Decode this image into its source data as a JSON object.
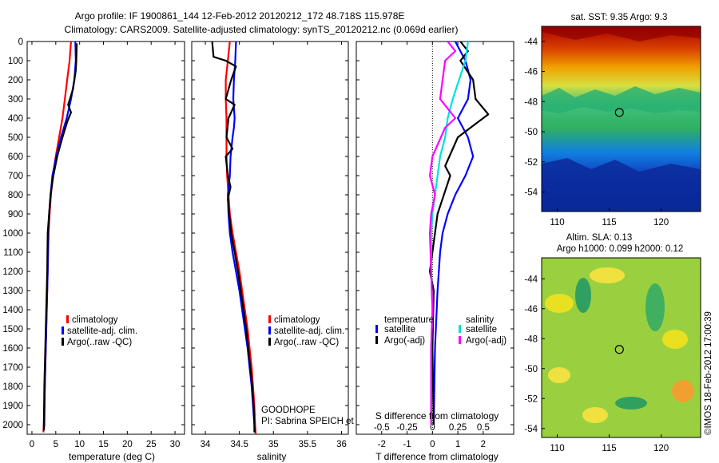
{
  "header": {
    "title": "Argo profile: IF 1900861_144 12-Feb-2012 20120212_172 48.718S 115.978E",
    "subtitle": "Climatology: CARS2009. Satellite-adjusted climatology: synTS_20120212.nc (0.069d earlier)"
  },
  "chart_data": [
    {
      "type": "line",
      "name": "temperature-profile",
      "xlabel": "temperature (deg C)",
      "xlim": [
        -1,
        32
      ],
      "ylim": [
        0,
        2050
      ],
      "xticks": [
        0,
        5,
        10,
        15,
        20,
        25,
        30
      ],
      "yticks": [
        0,
        100,
        200,
        300,
        400,
        500,
        600,
        700,
        800,
        900,
        1000,
        1100,
        1200,
        1300,
        1400,
        1500,
        1600,
        1700,
        1800,
        1900,
        2000
      ],
      "series": [
        {
          "name": "climatology",
          "color": "#ff0000",
          "points": [
            [
              8.2,
              0
            ],
            [
              7.9,
              100
            ],
            [
              7.4,
              200
            ],
            [
              6.9,
              300
            ],
            [
              6.4,
              400
            ],
            [
              5.7,
              500
            ],
            [
              5.0,
              600
            ],
            [
              4.4,
              700
            ],
            [
              4.0,
              800
            ],
            [
              3.7,
              900
            ],
            [
              3.5,
              1000
            ],
            [
              3.3,
              1200
            ],
            [
              3.1,
              1400
            ],
            [
              2.9,
              1600
            ],
            [
              2.7,
              1800
            ],
            [
              2.5,
              2000
            ],
            [
              2.4,
              2040
            ]
          ]
        },
        {
          "name": "satellite-adj. clim.",
          "color": "#0000ff",
          "points": [
            [
              9.1,
              0
            ],
            [
              9.2,
              100
            ],
            [
              8.9,
              200
            ],
            [
              8.2,
              300
            ],
            [
              7.3,
              400
            ],
            [
              6.1,
              500
            ],
            [
              5.1,
              600
            ],
            [
              4.3,
              700
            ],
            [
              3.9,
              800
            ],
            [
              3.6,
              900
            ],
            [
              3.4,
              1000
            ],
            [
              3.3,
              1200
            ],
            [
              3.1,
              1400
            ],
            [
              2.9,
              1600
            ],
            [
              2.7,
              1800
            ],
            [
              2.6,
              2000
            ],
            [
              2.5,
              2030
            ]
          ]
        },
        {
          "name": "Argo(..raw -QC)",
          "color": "#000000",
          "points": [
            [
              9.4,
              10
            ],
            [
              9.3,
              100
            ],
            [
              9.2,
              150
            ],
            [
              8.6,
              250
            ],
            [
              7.6,
              330
            ],
            [
              8.2,
              370
            ],
            [
              7.4,
              420
            ],
            [
              6.4,
              500
            ],
            [
              5.3,
              600
            ],
            [
              4.5,
              700
            ],
            [
              3.9,
              800
            ],
            [
              3.6,
              900
            ],
            [
              3.3,
              1000
            ],
            [
              3.2,
              1200
            ],
            [
              3.0,
              1400
            ],
            [
              2.8,
              1600
            ],
            [
              2.6,
              1800
            ],
            [
              2.5,
              2000
            ],
            [
              2.5,
              2030
            ]
          ]
        }
      ]
    },
    {
      "type": "line",
      "name": "salinity-profile",
      "xlabel": "salinity",
      "xlim": [
        33.8,
        36.1
      ],
      "ylim": [
        0,
        2050
      ],
      "xticks": [
        34,
        34.5,
        35,
        35.5,
        36
      ],
      "series": [
        {
          "name": "climatology",
          "color": "#ff0000",
          "points": [
            [
              34.36,
              0
            ],
            [
              34.33,
              100
            ],
            [
              34.3,
              200
            ],
            [
              34.3,
              300
            ],
            [
              34.31,
              400
            ],
            [
              34.31,
              500
            ],
            [
              34.31,
              600
            ],
            [
              34.32,
              700
            ],
            [
              34.34,
              800
            ],
            [
              34.36,
              900
            ],
            [
              34.4,
              1000
            ],
            [
              34.45,
              1100
            ],
            [
              34.5,
              1200
            ],
            [
              34.54,
              1300
            ],
            [
              34.58,
              1400
            ],
            [
              34.62,
              1500
            ],
            [
              34.65,
              1600
            ],
            [
              34.68,
              1700
            ],
            [
              34.7,
              1800
            ],
            [
              34.72,
              1900
            ],
            [
              34.73,
              2000
            ],
            [
              34.74,
              2050
            ]
          ]
        },
        {
          "name": "satellite-adj. clim.",
          "color": "#0000ff",
          "points": [
            [
              34.45,
              0
            ],
            [
              34.44,
              100
            ],
            [
              34.42,
              200
            ],
            [
              34.41,
              300
            ],
            [
              34.43,
              400
            ],
            [
              34.42,
              450
            ],
            [
              34.4,
              500
            ],
            [
              34.37,
              600
            ],
            [
              34.36,
              700
            ],
            [
              34.33,
              800
            ],
            [
              34.34,
              900
            ],
            [
              34.36,
              1000
            ],
            [
              34.4,
              1100
            ],
            [
              34.45,
              1200
            ],
            [
              34.5,
              1300
            ],
            [
              34.54,
              1400
            ],
            [
              34.58,
              1500
            ],
            [
              34.62,
              1600
            ],
            [
              34.65,
              1700
            ],
            [
              34.68,
              1800
            ],
            [
              34.7,
              1900
            ],
            [
              34.72,
              2000
            ],
            [
              34.73,
              2040
            ]
          ]
        },
        {
          "name": "Argo(..raw -QC)",
          "color": "#000000",
          "points": [
            [
              34.1,
              0
            ],
            [
              34.12,
              80
            ],
            [
              34.3,
              100
            ],
            [
              34.45,
              130
            ],
            [
              34.38,
              200
            ],
            [
              34.3,
              300
            ],
            [
              34.43,
              330
            ],
            [
              34.34,
              400
            ],
            [
              34.31,
              500
            ],
            [
              34.4,
              560
            ],
            [
              34.3,
              600
            ],
            [
              34.33,
              700
            ],
            [
              34.37,
              760
            ],
            [
              34.33,
              820
            ],
            [
              34.35,
              900
            ],
            [
              34.38,
              1000
            ],
            [
              34.43,
              1100
            ],
            [
              34.48,
              1200
            ],
            [
              34.52,
              1300
            ],
            [
              34.56,
              1400
            ],
            [
              34.6,
              1500
            ],
            [
              34.63,
              1600
            ],
            [
              34.66,
              1700
            ],
            [
              34.69,
              1800
            ],
            [
              34.71,
              1900
            ],
            [
              34.72,
              2000
            ],
            [
              34.72,
              2040
            ]
          ]
        }
      ]
    },
    {
      "type": "line",
      "name": "difference-profile",
      "xlabel": "T difference from climatology",
      "xlabel2": "S difference from climatology",
      "xlim": [
        -3,
        3.2
      ],
      "ylim": [
        0,
        2050
      ],
      "xticks": [
        -2,
        -1,
        0,
        1,
        2
      ],
      "xticks2": [
        "-0.5",
        "-0.25",
        "0",
        "0.25",
        "0.5"
      ],
      "series": [
        {
          "name": "temperature satellite",
          "color": "#0000ff",
          "points": [
            [
              0.9,
              0
            ],
            [
              1.3,
              100
            ],
            [
              1.5,
              200
            ],
            [
              1.4,
              300
            ],
            [
              1.0,
              400
            ],
            [
              1.4,
              500
            ],
            [
              1.6,
              600
            ],
            [
              1.3,
              700
            ],
            [
              0.9,
              800
            ],
            [
              0.6,
              900
            ],
            [
              0.4,
              1000
            ],
            [
              0.3,
              1100
            ],
            [
              0.2,
              1300
            ],
            [
              0.1,
              1600
            ],
            [
              0.05,
              2000
            ]
          ]
        },
        {
          "name": "temperature Argo(-adj)",
          "color": "#000000",
          "points": [
            [
              1.1,
              0
            ],
            [
              1.4,
              50
            ],
            [
              1.1,
              100
            ],
            [
              1.6,
              200
            ],
            [
              1.7,
              300
            ],
            [
              2.2,
              380
            ],
            [
              1.8,
              420
            ],
            [
              1.0,
              500
            ],
            [
              0.5,
              650
            ],
            [
              0.7,
              700
            ],
            [
              0.2,
              900
            ],
            [
              0.1,
              1000
            ],
            [
              -0.1,
              1200
            ],
            [
              0.05,
              1300
            ],
            [
              0.0,
              1600
            ],
            [
              0.05,
              2000
            ]
          ]
        },
        {
          "name": "salinity satellite",
          "color": "#00e0e0",
          "points": [
            [
              1.4,
              0
            ],
            [
              1.3,
              100
            ],
            [
              0.8,
              300
            ],
            [
              0.6,
              400
            ],
            [
              0.5,
              500
            ],
            [
              0.3,
              600
            ],
            [
              0.2,
              700
            ],
            [
              0.1,
              800
            ],
            [
              0.0,
              900
            ],
            [
              -0.05,
              1000
            ],
            [
              -0.05,
              1200
            ],
            [
              0.0,
              1400
            ],
            [
              -0.05,
              1600
            ],
            [
              -0.05,
              2000
            ]
          ]
        },
        {
          "name": "salinity Argo(-adj)",
          "color": "#ff00ff",
          "points": [
            [
              0.6,
              0
            ],
            [
              0.9,
              50
            ],
            [
              0.5,
              100
            ],
            [
              0.4,
              200
            ],
            [
              0.3,
              300
            ],
            [
              0.9,
              400
            ],
            [
              0.5,
              450
            ],
            [
              0.0,
              600
            ],
            [
              -0.1,
              700
            ],
            [
              0.1,
              800
            ],
            [
              -0.05,
              900
            ],
            [
              -0.1,
              1000
            ],
            [
              -0.05,
              1200
            ],
            [
              0.0,
              1400
            ],
            [
              -0.05,
              1600
            ],
            [
              -0.05,
              2000
            ]
          ]
        }
      ]
    },
    {
      "type": "heatmap",
      "name": "sst-map",
      "title": "sat. SST: 9.35  Argo: 9.3",
      "xticks": [
        110,
        115,
        120
      ],
      "yticks": [
        -44,
        -46,
        -48,
        -50,
        -52,
        -54
      ],
      "marker": [
        115.978,
        -48.718
      ]
    },
    {
      "type": "heatmap",
      "name": "sla-map",
      "title": "Altim. SLA: 0.13",
      "subtitle": "Argo h1000: 0.099 h2000: 0.12",
      "xticks": [
        110,
        115,
        120
      ],
      "yticks": [
        -44,
        -46,
        -48,
        -50,
        -52,
        -54
      ],
      "marker": [
        115.978,
        -48.718
      ]
    }
  ],
  "legend1": [
    "climatology",
    "satellite-adj. clim.",
    "Argo(..raw -QC)"
  ],
  "legend3": {
    "temp_head": "temperature",
    "sal_head": "salinity",
    "items": [
      "satellite",
      "Argo(-adj)",
      "satellite",
      "Argo(-adj)"
    ]
  },
  "annot": {
    "project": "GOODHOPE",
    "pi": "PI: Sabrina SPEICH et Michel ARHAN"
  },
  "credit": "©IMOS 18-Feb-2012 17:00:39",
  "colors": {
    "clim": "#ff0000",
    "sat": "#0000ff",
    "argo": "#000000",
    "sal_sat": "#00e0e0",
    "sal_argo": "#ff00ff"
  }
}
